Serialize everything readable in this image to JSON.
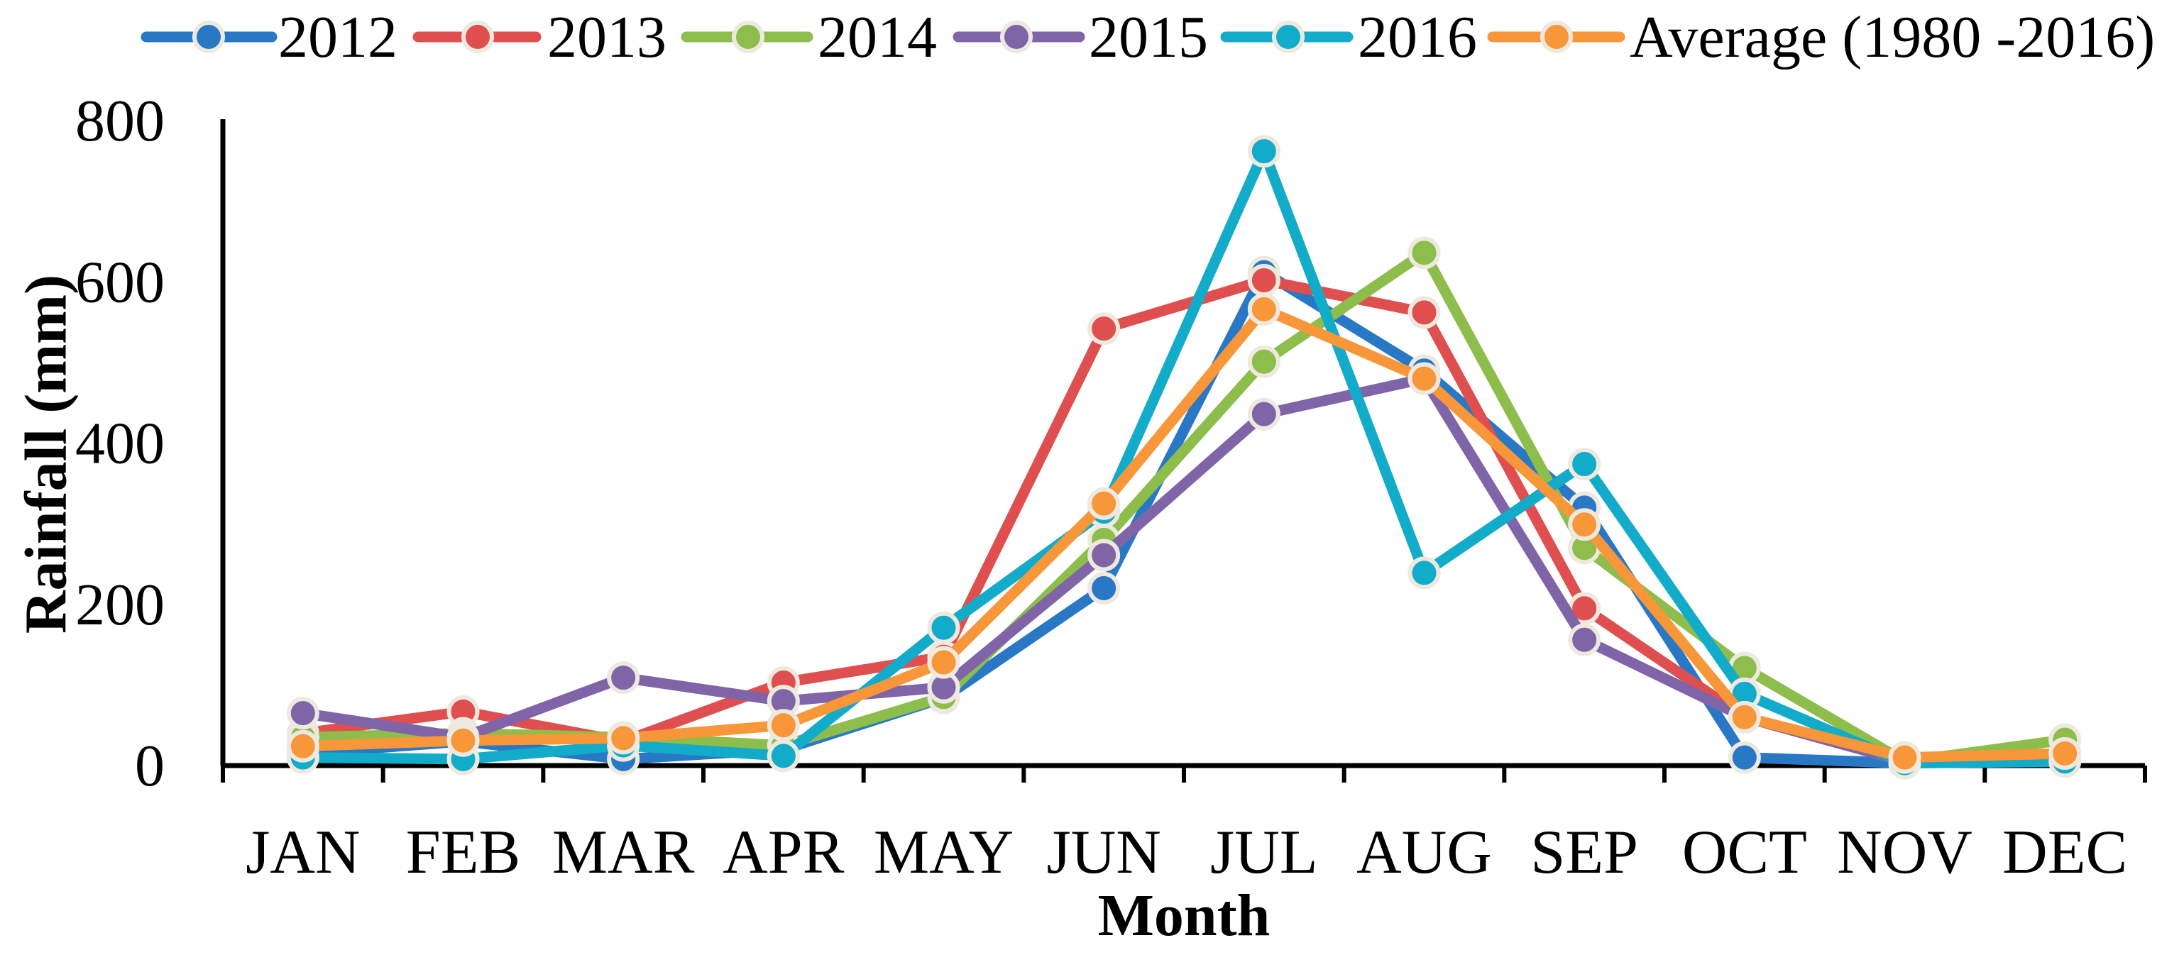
{
  "chart_data": {
    "type": "line",
    "xlabel": "Month",
    "ylabel": "Rainfall (mm)",
    "categories": [
      "JAN",
      "FEB",
      "MAR",
      "APR",
      "MAY",
      "JUN",
      "JUL",
      "AUG",
      "SEP",
      "OCT",
      "NOV",
      "DEC"
    ],
    "ylim": [
      0,
      800
    ],
    "yticks": [
      0,
      200,
      400,
      600,
      800
    ],
    "grid": false,
    "legend_position": "top",
    "marker_edge_color": "#ede9df",
    "axis_color": "#000000",
    "series": [
      {
        "name": "2012",
        "color": "#2878c6",
        "values": [
          15,
          30,
          8,
          20,
          84,
          220,
          612,
          490,
          320,
          10,
          3,
          8
        ]
      },
      {
        "name": "2013",
        "color": "#e04f4f",
        "values": [
          40,
          67,
          30,
          103,
          135,
          542,
          602,
          562,
          195,
          60,
          5,
          15
        ]
      },
      {
        "name": "2014",
        "color": "#8dbd4b",
        "values": [
          35,
          40,
          35,
          25,
          85,
          280,
          501,
          636,
          270,
          121,
          5,
          32
        ]
      },
      {
        "name": "2015",
        "color": "#8064a8",
        "values": [
          65,
          35,
          109,
          80,
          97,
          261,
          436,
          480,
          156,
          60,
          5,
          15
        ]
      },
      {
        "name": "2016",
        "color": "#12abc9",
        "values": [
          10,
          8,
          25,
          12,
          171,
          315,
          762,
          239,
          374,
          89,
          3,
          5
        ]
      },
      {
        "name": "Average (1980 -2016)",
        "color": "#f8963a",
        "values": [
          24,
          31,
          34,
          50,
          128,
          325,
          566,
          480,
          299,
          60,
          10,
          15
        ]
      }
    ]
  }
}
